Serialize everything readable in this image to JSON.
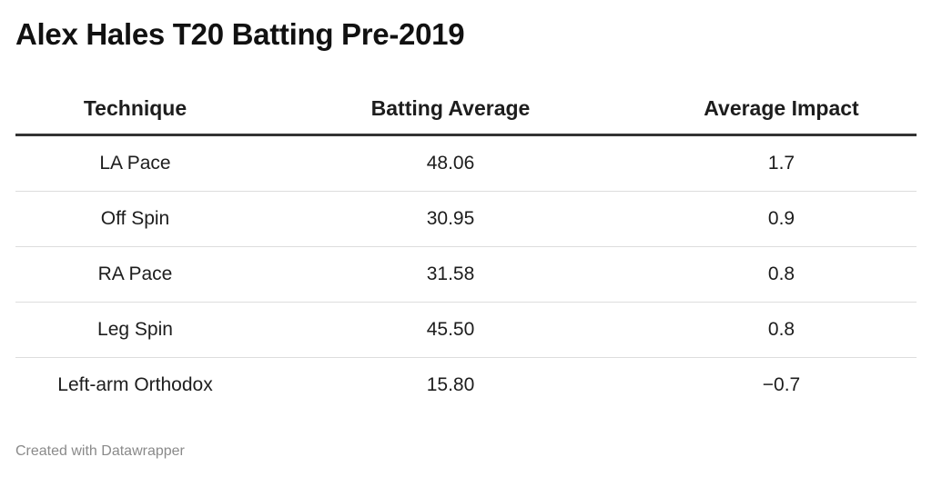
{
  "chart_data": {
    "type": "table",
    "title": "Alex Hales T20 Batting Pre-2019",
    "columns": [
      "Technique",
      "Batting Average",
      "Average Impact"
    ],
    "rows": [
      [
        "LA Pace",
        "48.06",
        "1.7"
      ],
      [
        "Off Spin",
        "30.95",
        "0.9"
      ],
      [
        "RA Pace",
        "31.58",
        "0.8"
      ],
      [
        "Leg Spin",
        "45.50",
        "0.8"
      ],
      [
        "Left-arm Orthodox",
        "15.80",
        "−0.7"
      ]
    ]
  },
  "footer": {
    "credit": "Created with Datawrapper"
  },
  "colors": {
    "header_rule": "#333333",
    "row_divider": "#dddddd",
    "footer_text": "#8a8a8a"
  }
}
